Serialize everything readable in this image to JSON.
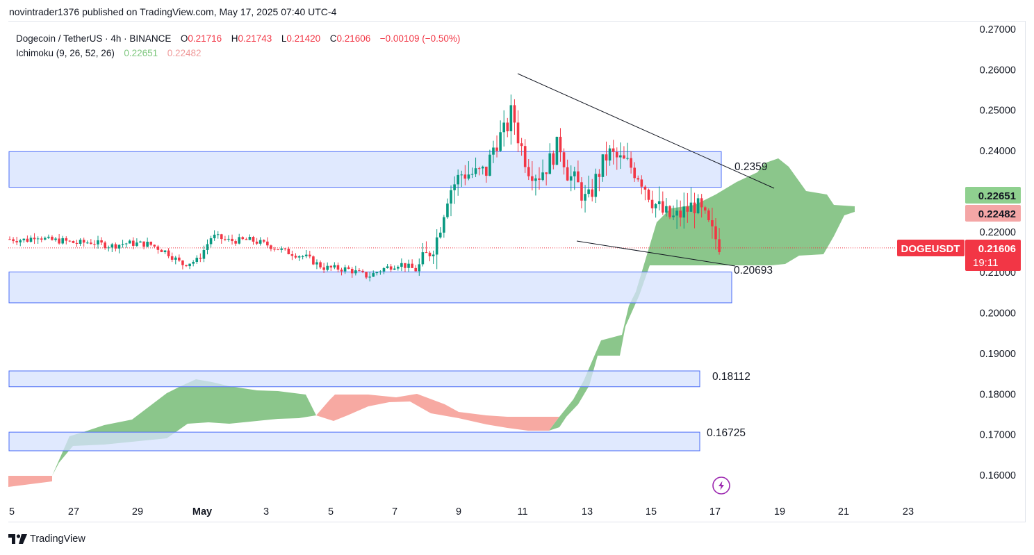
{
  "header": {
    "publisher_line": "novintrader1376 published on TradingView.com, May 17, 2025 07:40 UTC-4"
  },
  "legend": {
    "symbol": "Dogecoin / TetherUS · 4h · BINANCE",
    "o_label": "O",
    "o_value": "0.21716",
    "h_label": "H",
    "h_value": "0.21743",
    "l_label": "L",
    "l_value": "0.21420",
    "c_label": "C",
    "c_value": "0.21606",
    "change": "−0.00109 (−0.50%)",
    "indicator": "Ichimoku (9, 26, 52, 26)",
    "ind_value_1": "0.22651",
    "ind_value_2": "0.22482"
  },
  "footer": {
    "brand": "TradingView"
  },
  "colors": {
    "up": "#26a69a",
    "up_candle": "#089981",
    "down": "#f23645",
    "cloud_bull": "#8bc68b",
    "cloud_bear": "#f7a9a2",
    "zone_fill": "#d6e2fd",
    "zone_border": "#4a6cf7",
    "price_tag": "#f23645",
    "span_a_tag": "#8fd08f",
    "span_b_tag": "#f4a6a6"
  },
  "chart_data": {
    "type": "candlestick",
    "symbol": "DOGEUSDT",
    "interval": "4h",
    "y_ticks": [
      "0.27000",
      "0.26000",
      "0.25000",
      "0.24000",
      "0.23000",
      "0.22000",
      "0.21000",
      "0.20000",
      "0.19000",
      "0.18000",
      "0.17000",
      "0.16000"
    ],
    "x_ticks": [
      "5",
      "27",
      "29",
      "May",
      "3",
      "5",
      "7",
      "9",
      "11",
      "13",
      "15",
      "17",
      "19",
      "21",
      "23"
    ],
    "ylim": [
      0.1555,
      0.2725
    ],
    "last_price": {
      "symbol": "DOGEUSDT",
      "value": "0.21606",
      "countdown": "19:11"
    },
    "ichimoku_tags": {
      "span_a": "0.22651",
      "span_b": "0.22482"
    },
    "zones": [
      {
        "low": 0.231,
        "high": 0.2398,
        "label": "0.2359"
      },
      {
        "low": 0.2025,
        "high": 0.2101,
        "label": "0.20693"
      },
      {
        "low": 0.1818,
        "high": 0.1857,
        "label": "0.18112"
      },
      {
        "low": 0.166,
        "high": 0.1706,
        "label": "0.16725"
      }
    ],
    "trendlines": [
      {
        "from": [
          "May 11 00:00",
          0.259
        ],
        "to": [
          "May 18 12:00",
          0.2314
        ]
      },
      {
        "from": [
          "May 12 20:00",
          0.2176
        ],
        "to": [
          "May 17 12:00",
          0.2117
        ]
      }
    ],
    "candles": [
      [
        0.218,
        0.2188,
        0.2168,
        0.2182
      ],
      [
        0.2182,
        0.219,
        0.217,
        0.2176
      ],
      [
        0.2176,
        0.2184,
        0.2165,
        0.2179
      ],
      [
        0.2179,
        0.2186,
        0.2168,
        0.2181
      ],
      [
        0.2181,
        0.2189,
        0.217,
        0.2178
      ],
      [
        0.2178,
        0.2185,
        0.2166,
        0.2183
      ],
      [
        0.2183,
        0.219,
        0.2172,
        0.218
      ],
      [
        0.218,
        0.2187,
        0.2169,
        0.2177
      ],
      [
        0.2177,
        0.2186,
        0.2165,
        0.2184
      ],
      [
        0.2184,
        0.2192,
        0.2173,
        0.2181
      ],
      [
        0.2181,
        0.2188,
        0.217,
        0.2179
      ],
      [
        0.2179,
        0.2187,
        0.2166,
        0.2183
      ]
    ]
  }
}
